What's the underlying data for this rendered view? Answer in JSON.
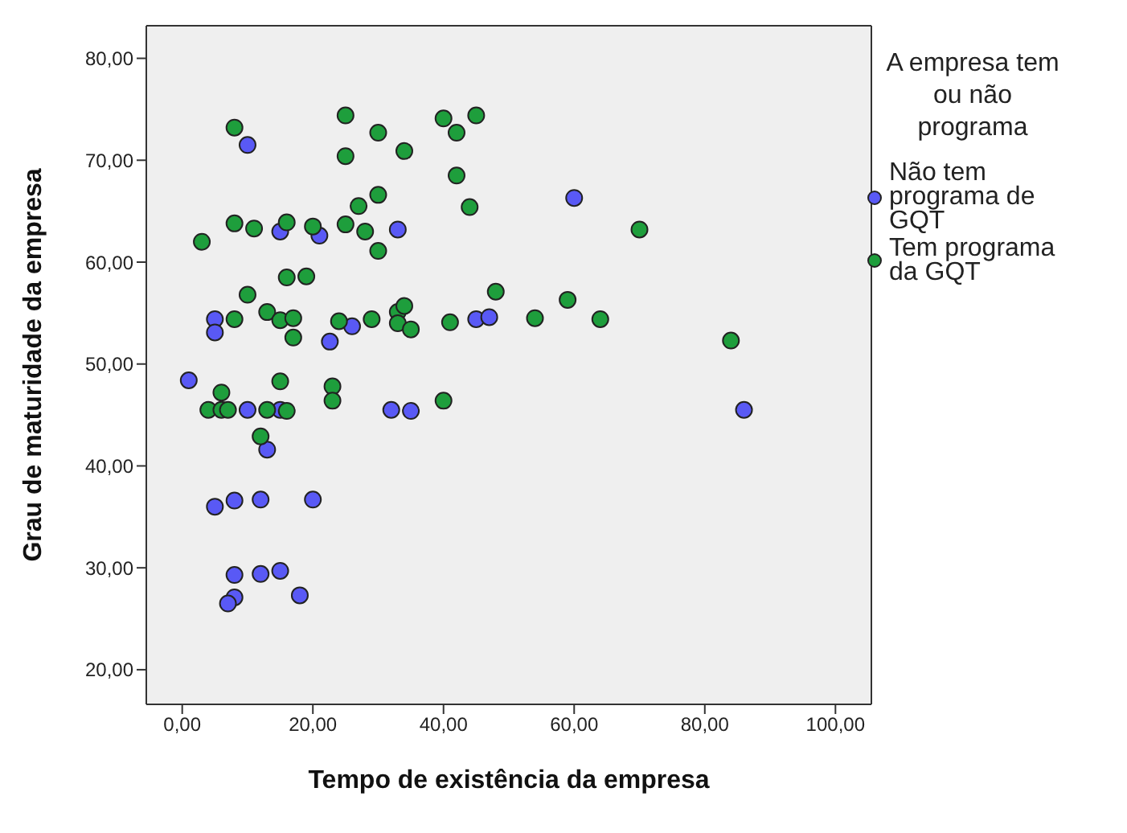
{
  "chart_data": {
    "type": "scatter",
    "xlabel": "Tempo de existência da empresa",
    "ylabel": "Grau de maturidade da empresa",
    "legend_title": "A empresa tem ou não programa",
    "legend": "right",
    "marker": "circle",
    "xlim": [
      -5.5,
      105.5
    ],
    "ylim": [
      16.6,
      83.2
    ],
    "xticks": [
      {
        "value": 0,
        "label": "0,00"
      },
      {
        "value": 20,
        "label": "20,00"
      },
      {
        "value": 40,
        "label": "40,00"
      },
      {
        "value": 60,
        "label": "60,00"
      },
      {
        "value": 80,
        "label": "80,00"
      },
      {
        "value": 100,
        "label": "100,00"
      }
    ],
    "yticks": [
      {
        "value": 20,
        "label": "20,00"
      },
      {
        "value": 30,
        "label": "30,00"
      },
      {
        "value": 40,
        "label": "40,00"
      },
      {
        "value": 50,
        "label": "50,00"
      },
      {
        "value": 60,
        "label": "60,00"
      },
      {
        "value": 70,
        "label": "70,00"
      },
      {
        "value": 80,
        "label": "80,00"
      }
    ],
    "series": [
      {
        "name": "Não tem programa de GQT",
        "color": "#5959f5",
        "x": [
          10,
          15,
          21,
          33,
          5,
          5,
          22.6,
          26,
          45,
          47,
          60,
          86,
          1,
          10,
          15,
          32,
          35,
          13,
          5,
          8,
          12,
          20,
          8,
          12,
          15,
          8,
          7,
          18
        ],
        "values": [
          71.5,
          63,
          62.6,
          63.2,
          54.4,
          53.1,
          52.2,
          53.7,
          54.4,
          54.6,
          66.3,
          45.5,
          48.4,
          45.5,
          45.5,
          45.5,
          45.4,
          41.6,
          36,
          36.6,
          36.7,
          36.7,
          29.3,
          29.4,
          29.7,
          27.1,
          26.5,
          27.3
        ]
      },
      {
        "name": "Tem programa da GQT",
        "color": "#1e9e3c",
        "x": [
          8,
          25,
          30,
          25,
          34,
          40,
          45,
          42,
          42,
          44,
          30,
          27,
          8,
          11,
          16,
          20,
          25,
          28,
          30,
          3,
          16,
          19,
          10,
          48,
          13,
          8,
          15,
          17,
          17,
          24,
          29,
          33,
          34,
          33,
          35,
          41,
          70,
          59,
          54,
          64,
          84,
          6,
          4,
          6,
          7,
          13,
          16,
          15,
          23,
          23,
          40,
          12
        ],
        "values": [
          73.2,
          74.4,
          72.7,
          70.4,
          70.9,
          74.1,
          74.4,
          72.7,
          68.5,
          65.4,
          66.6,
          65.5,
          63.8,
          63.3,
          63.9,
          63.5,
          63.7,
          63,
          61.1,
          62,
          58.5,
          58.6,
          56.8,
          57.1,
          55.1,
          54.4,
          54.3,
          54.5,
          52.6,
          54.2,
          54.4,
          55.1,
          55.7,
          54,
          53.4,
          54.1,
          63.2,
          56.3,
          54.5,
          54.4,
          52.3,
          47.2,
          45.5,
          45.5,
          45.5,
          45.5,
          45.4,
          48.3,
          47.8,
          46.4,
          46.4,
          42.9
        ]
      }
    ]
  }
}
